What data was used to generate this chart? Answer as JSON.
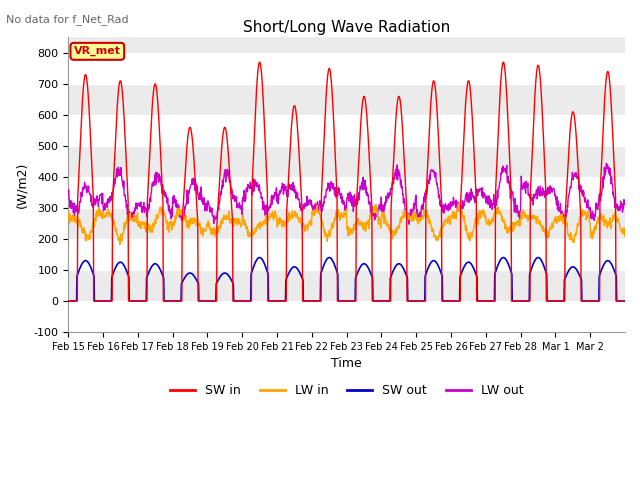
{
  "title": "Short/Long Wave Radiation",
  "subtitle": "No data for f_Net_Rad",
  "xlabel": "Time",
  "ylabel": "(W/m2)",
  "ylim": [
    -100,
    850
  ],
  "yticks": [
    -100,
    0,
    100,
    200,
    300,
    400,
    500,
    600,
    700,
    800
  ],
  "date_labels": [
    "Feb 15",
    "Feb 16",
    "Feb 17",
    "Feb 18",
    "Feb 19",
    "Feb 20",
    "Feb 21",
    "Feb 22",
    "Feb 23",
    "Feb 24",
    "Feb 25",
    "Feb 26",
    "Feb 27",
    "Feb 28",
    "Mar 1",
    "Mar 2"
  ],
  "n_days": 16,
  "legend_label": "VR_met",
  "sw_in_color": "#FF0000",
  "lw_in_color": "#FFA500",
  "sw_out_color": "#0000CC",
  "lw_out_color": "#CC00CC",
  "plot_bg_color": "#EBEBEB",
  "grid_color": "#FFFFFF",
  "sw_in_peaks": [
    730,
    710,
    700,
    560,
    560,
    770,
    630,
    750,
    660,
    660,
    710,
    710,
    770,
    760,
    610,
    740
  ],
  "sw_out_peaks": [
    130,
    125,
    120,
    90,
    90,
    140,
    110,
    140,
    120,
    120,
    130,
    125,
    140,
    140,
    110,
    130
  ]
}
